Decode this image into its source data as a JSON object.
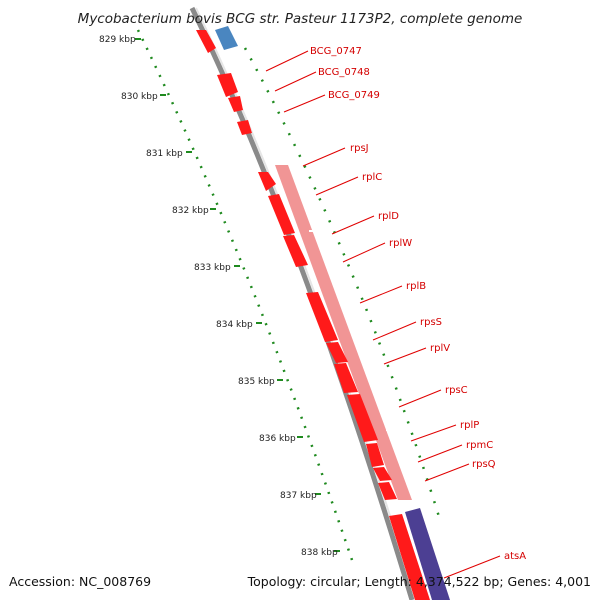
{
  "title": "Mycobacterium bovis BCG str. Pasteur 1173P2, complete genome",
  "footer": {
    "accession": "Accession: NC_008769",
    "summary": "Topology: circular; Length: 4,374,522 bp; Genes: 4,001"
  },
  "colors": {
    "forward_gene": "#ff1a1a",
    "reverse_gene_blue": "#4a86c0",
    "reverse_gene_purple": "#4c3f93",
    "operon": "#f08a8a",
    "backbone": "#8a8a8a",
    "tick": "#1f8a1f",
    "label": "#d40000"
  },
  "scale_labels": [
    "829 kbp",
    "830 kbp",
    "831 kbp",
    "832 kbp",
    "833 kbp",
    "834 kbp",
    "835 kbp",
    "836 kbp",
    "837 kbp",
    "838 kbp"
  ],
  "gene_labels": [
    "BCG_0747",
    "BCG_0748",
    "BCG_0749",
    "rpsJ",
    "rplC",
    "rplD",
    "rplW",
    "rplB",
    "rpsS",
    "rplV",
    "rpsC",
    "rplP",
    "rpmC",
    "rpsQ",
    "atsA"
  ]
}
